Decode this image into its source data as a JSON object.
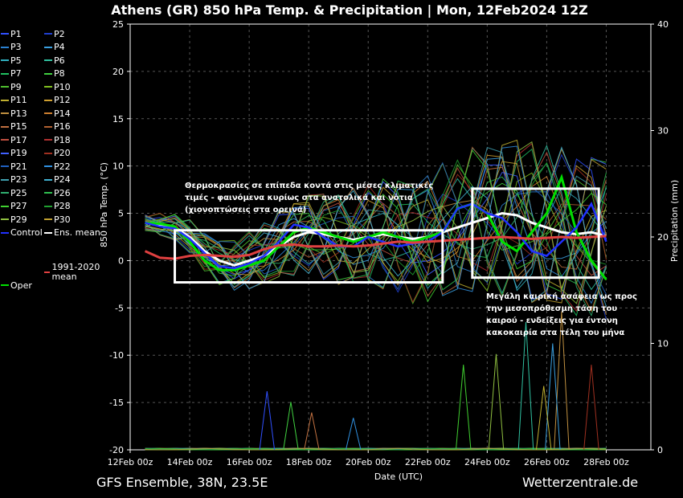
{
  "title": "Athens  (GR)  850 hPa Temp. & Precipitation | Mon, 12Feb2024 12Z",
  "footer": {
    "left": "GFS Ensemble, 38N, 23.5E",
    "right": "Wetterzentrale.de"
  },
  "annotations": {
    "left": "Θερμοκρασίες σε επίπεδα κοντά στις μέσες κλιματικές τιμές - φαινόμενα κυρίως στα ανατολικά και νότια (χιονοπτώσεις στα ορεινά)",
    "right": "Μεγάλη καιρική ασάφεια ως προς την μεσοπρόθεσμη τάση του καιρού - ενδείξεις για έντονη κακοκαιρία στα τέλη του μήνα"
  },
  "legend": [
    {
      "label": "P1",
      "color": "#3050ff"
    },
    {
      "label": "P2",
      "color": "#2040d0"
    },
    {
      "label": "P3",
      "color": "#2a80d0"
    },
    {
      "label": "P4",
      "color": "#3aa0e0"
    },
    {
      "label": "P5",
      "color": "#30b0c0"
    },
    {
      "label": "P6",
      "color": "#30c0a0"
    },
    {
      "label": "P7",
      "color": "#20c060"
    },
    {
      "label": "P8",
      "color": "#40d040"
    },
    {
      "label": "P9",
      "color": "#50c030"
    },
    {
      "label": "P10",
      "color": "#80c020"
    },
    {
      "label": "P11",
      "color": "#c0b030"
    },
    {
      "label": "P12",
      "color": "#d0a030"
    },
    {
      "label": "P13",
      "color": "#c09040"
    },
    {
      "label": "P14",
      "color": "#d08030"
    },
    {
      "label": "P15",
      "color": "#c07040"
    },
    {
      "label": "P16",
      "color": "#b06030"
    },
    {
      "label": "P17",
      "color": "#c05040"
    },
    {
      "label": "P18",
      "color": "#b03030"
    },
    {
      "label": "P19",
      "color": "#4060ff"
    },
    {
      "label": "P20",
      "color": "#a03020"
    },
    {
      "label": "P21",
      "color": "#2060c0"
    },
    {
      "label": "P22",
      "color": "#3090e0"
    },
    {
      "label": "P23",
      "color": "#40a0b0"
    },
    {
      "label": "P24",
      "color": "#40b0d0"
    },
    {
      "label": "P25",
      "color": "#30b070"
    },
    {
      "label": "P26",
      "color": "#30c050"
    },
    {
      "label": "P27",
      "color": "#40d030"
    },
    {
      "label": "P28",
      "color": "#20a030"
    },
    {
      "label": "P29",
      "color": "#90c040"
    },
    {
      "label": "P30",
      "color": "#c0a030"
    },
    {
      "label": "Control",
      "color": "#2030ff"
    },
    {
      "label": "Ens. mean",
      "color": "#ffffff"
    },
    {
      "label": "1991-2020 mean",
      "color": "#e04040"
    },
    {
      "label": "Oper",
      "color": "#00e000"
    }
  ],
  "colors": {
    "background": "#000000",
    "grid": "#555555",
    "boxes": "#ffffff"
  },
  "chart_data": {
    "type": "line",
    "xlabel": "Date (UTC)",
    "ylabel": "850 hPa Temp. (°C)",
    "y2label": "Precipitation (mm)",
    "ylim": [
      -20,
      25
    ],
    "y2lim": [
      0,
      40
    ],
    "yticks": [
      -20,
      -15,
      -10,
      -5,
      0,
      5,
      10,
      15,
      20,
      25
    ],
    "y2ticks": [
      0,
      10,
      20,
      30,
      40
    ],
    "x_start": "12Feb 00z",
    "xtick_labels": [
      "12Feb 00z",
      "14Feb 00z",
      "16Feb 00z",
      "18Feb 00z",
      "20Feb 00z",
      "22Feb 00z",
      "24Feb 00z",
      "26Feb 00z",
      "28Feb 00z"
    ],
    "x_days": [
      0.5,
      1,
      1.5,
      2,
      2.5,
      3,
      3.5,
      4,
      4.5,
      5,
      5.5,
      6,
      6.5,
      7,
      7.5,
      8,
      8.5,
      9,
      9.5,
      10,
      10.5,
      11,
      11.5,
      12,
      12.5,
      13,
      13.5,
      14,
      14.5,
      15,
      15.5,
      16
    ],
    "series": [
      {
        "name": "Ens. mean",
        "values": [
          4,
          3.8,
          3.5,
          2.5,
          1,
          0,
          -0.5,
          0,
          0.5,
          1.5,
          2.5,
          3,
          2.8,
          2.5,
          2.2,
          2.5,
          2.8,
          2.5,
          2.3,
          2.5,
          3,
          3.5,
          4,
          4.5,
          5,
          4.8,
          4,
          3.5,
          3,
          2.8,
          3,
          2.6
        ]
      },
      {
        "name": "Oper",
        "values": [
          4,
          3.9,
          3.6,
          2,
          0,
          -1,
          -1,
          -0.5,
          0,
          1.5,
          3,
          3.5,
          3,
          2.5,
          2,
          2.5,
          3,
          2.5,
          2,
          2.5,
          3,
          5.5,
          6,
          5,
          2,
          1,
          3,
          5,
          8.8,
          3,
          0,
          -2
        ]
      },
      {
        "name": "Control",
        "values": [
          4,
          3.6,
          3.4,
          2.3,
          0.8,
          -0.6,
          -0.8,
          -0.3,
          0.5,
          2,
          3.8,
          3.5,
          2.5,
          1.5,
          1.5,
          2.5,
          2,
          1.5,
          1.8,
          2,
          3,
          5.5,
          6,
          5,
          4.5,
          3,
          1,
          0.5,
          2,
          3.5,
          6,
          2
        ]
      },
      {
        "name": "1991-2020 mean",
        "values": [
          1,
          0.3,
          0.2,
          0.5,
          0.6,
          0.5,
          0.4,
          0.6,
          1.2,
          1.6,
          1.7,
          1.5,
          1.5,
          1.6,
          1.5,
          1.6,
          1.8,
          2,
          1.9,
          2,
          2.1,
          2.2,
          2.3,
          2.4,
          2.5,
          2.4,
          2.3,
          2.4,
          2.5,
          2.4,
          2.5,
          2.6
        ]
      }
    ],
    "precip_spikes_mm": [
      {
        "day": 4.6,
        "mm": 5.5
      },
      {
        "day": 5.4,
        "mm": 4.5
      },
      {
        "day": 6.1,
        "mm": 3.5
      },
      {
        "day": 7.5,
        "mm": 3
      },
      {
        "day": 12.3,
        "mm": 9
      },
      {
        "day": 13.3,
        "mm": 12
      },
      {
        "day": 14.5,
        "mm": 13
      },
      {
        "day": 15.5,
        "mm": 8
      },
      {
        "day": 11.2,
        "mm": 8
      },
      {
        "day": 14.2,
        "mm": 10
      },
      {
        "day": 13.9,
        "mm": 6
      }
    ],
    "boxes": [
      {
        "x_from": "13Feb 12z",
        "x_to": "22Feb 12z",
        "y_from": -2.3,
        "y_to": 3.2
      },
      {
        "x_from": "23Feb 12z",
        "x_to": "27Feb 18z",
        "y_from": -1.8,
        "y_to": 7.6
      }
    ],
    "grid": true,
    "legend_position": "left"
  }
}
